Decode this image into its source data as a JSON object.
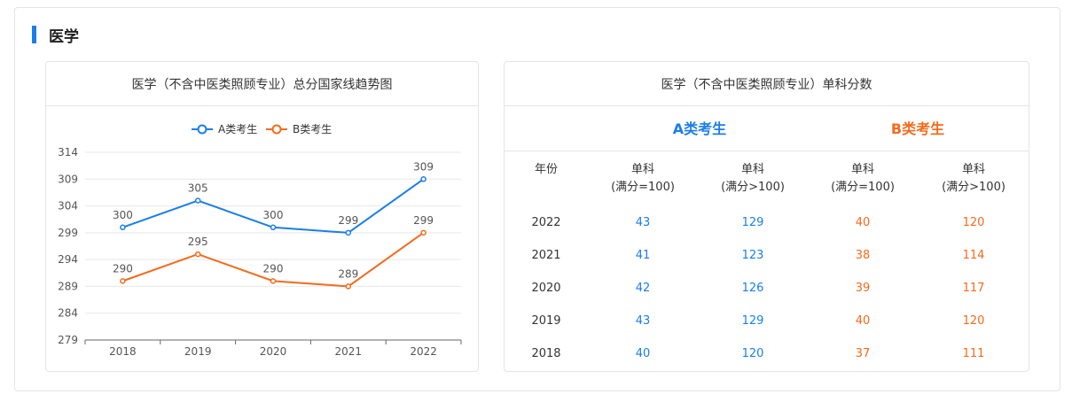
{
  "section": {
    "title": "医学"
  },
  "chart_card": {
    "title": "医学（不含中医类照顾专业）总分国家线趋势图"
  },
  "table_card": {
    "title": "医学（不含中医类照顾专业）单科分数",
    "group_a": "A类考生",
    "group_b": "B类考生",
    "headers": [
      {
        "line1": "年份",
        "line2": ""
      },
      {
        "line1": "单科",
        "line2": "(满分=100)"
      },
      {
        "line1": "单科",
        "line2": "(满分>100)"
      },
      {
        "line1": "单科",
        "line2": "(满分=100)"
      },
      {
        "line1": "单科",
        "line2": "(满分>100)"
      }
    ],
    "rows": [
      {
        "year": "2022",
        "a100": "43",
        "a_over": "129",
        "b100": "40",
        "b_over": "120"
      },
      {
        "year": "2021",
        "a100": "41",
        "a_over": "123",
        "b100": "38",
        "b_over": "114"
      },
      {
        "year": "2020",
        "a100": "42",
        "a_over": "126",
        "b100": "39",
        "b_over": "117"
      },
      {
        "year": "2019",
        "a100": "43",
        "a_over": "129",
        "b100": "40",
        "b_over": "120"
      },
      {
        "year": "2018",
        "a100": "40",
        "a_over": "120",
        "b100": "37",
        "b_over": "111"
      }
    ]
  },
  "colors": {
    "a": "#1a7ee8",
    "b": "#f26b1d",
    "grid": "#e8e8e8",
    "axis": "#666666",
    "label": "#555555"
  },
  "chart_data": {
    "type": "line",
    "categories": [
      "2018",
      "2019",
      "2020",
      "2021",
      "2022"
    ],
    "series": [
      {
        "name": "A类考生",
        "values": [
          300,
          305,
          300,
          299,
          309
        ]
      },
      {
        "name": "B类考生",
        "values": [
          290,
          295,
          290,
          289,
          299
        ]
      }
    ],
    "yticks": [
      279,
      284,
      289,
      294,
      299,
      304,
      309,
      314
    ],
    "ylim": [
      279,
      314
    ],
    "grid": true,
    "legend": "top-center"
  }
}
